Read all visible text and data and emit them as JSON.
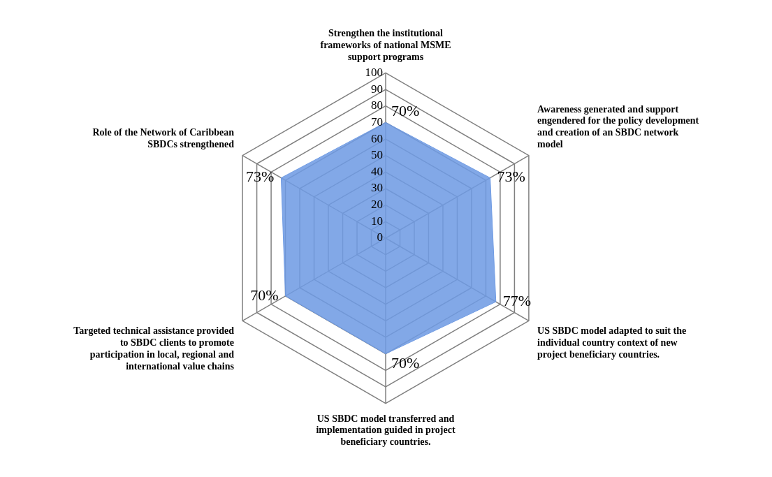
{
  "chart_data": {
    "type": "radar",
    "categories": [
      "Strengthen the institutional frameworks of national MSME support programs",
      "Awareness generated and support engendered for the policy development and creation of an SBDC network model",
      "US SBDC model adapted to suit the individual country context of new project beneficiary countries.",
      "US SBDC model transferred and implementation guided in project beneficiary countries.",
      "Targeted technical assistance provided to SBDC clients to promote participation in local, regional and international value chains",
      "Role of the Network of Caribbean SBDCs strengthened"
    ],
    "series": [
      {
        "color": "#6f9be3",
        "values": [
          70,
          73,
          77,
          70,
          70,
          73
        ],
        "value_labels": [
          "70%",
          "73%",
          "77%",
          "70%",
          "70%",
          "73%"
        ]
      }
    ],
    "ylim": [
      0,
      100
    ],
    "yticks": [
      0,
      10,
      20,
      30,
      40,
      50,
      60,
      70,
      80,
      90,
      100
    ],
    "grid": true,
    "legend": false,
    "marker": "none"
  }
}
